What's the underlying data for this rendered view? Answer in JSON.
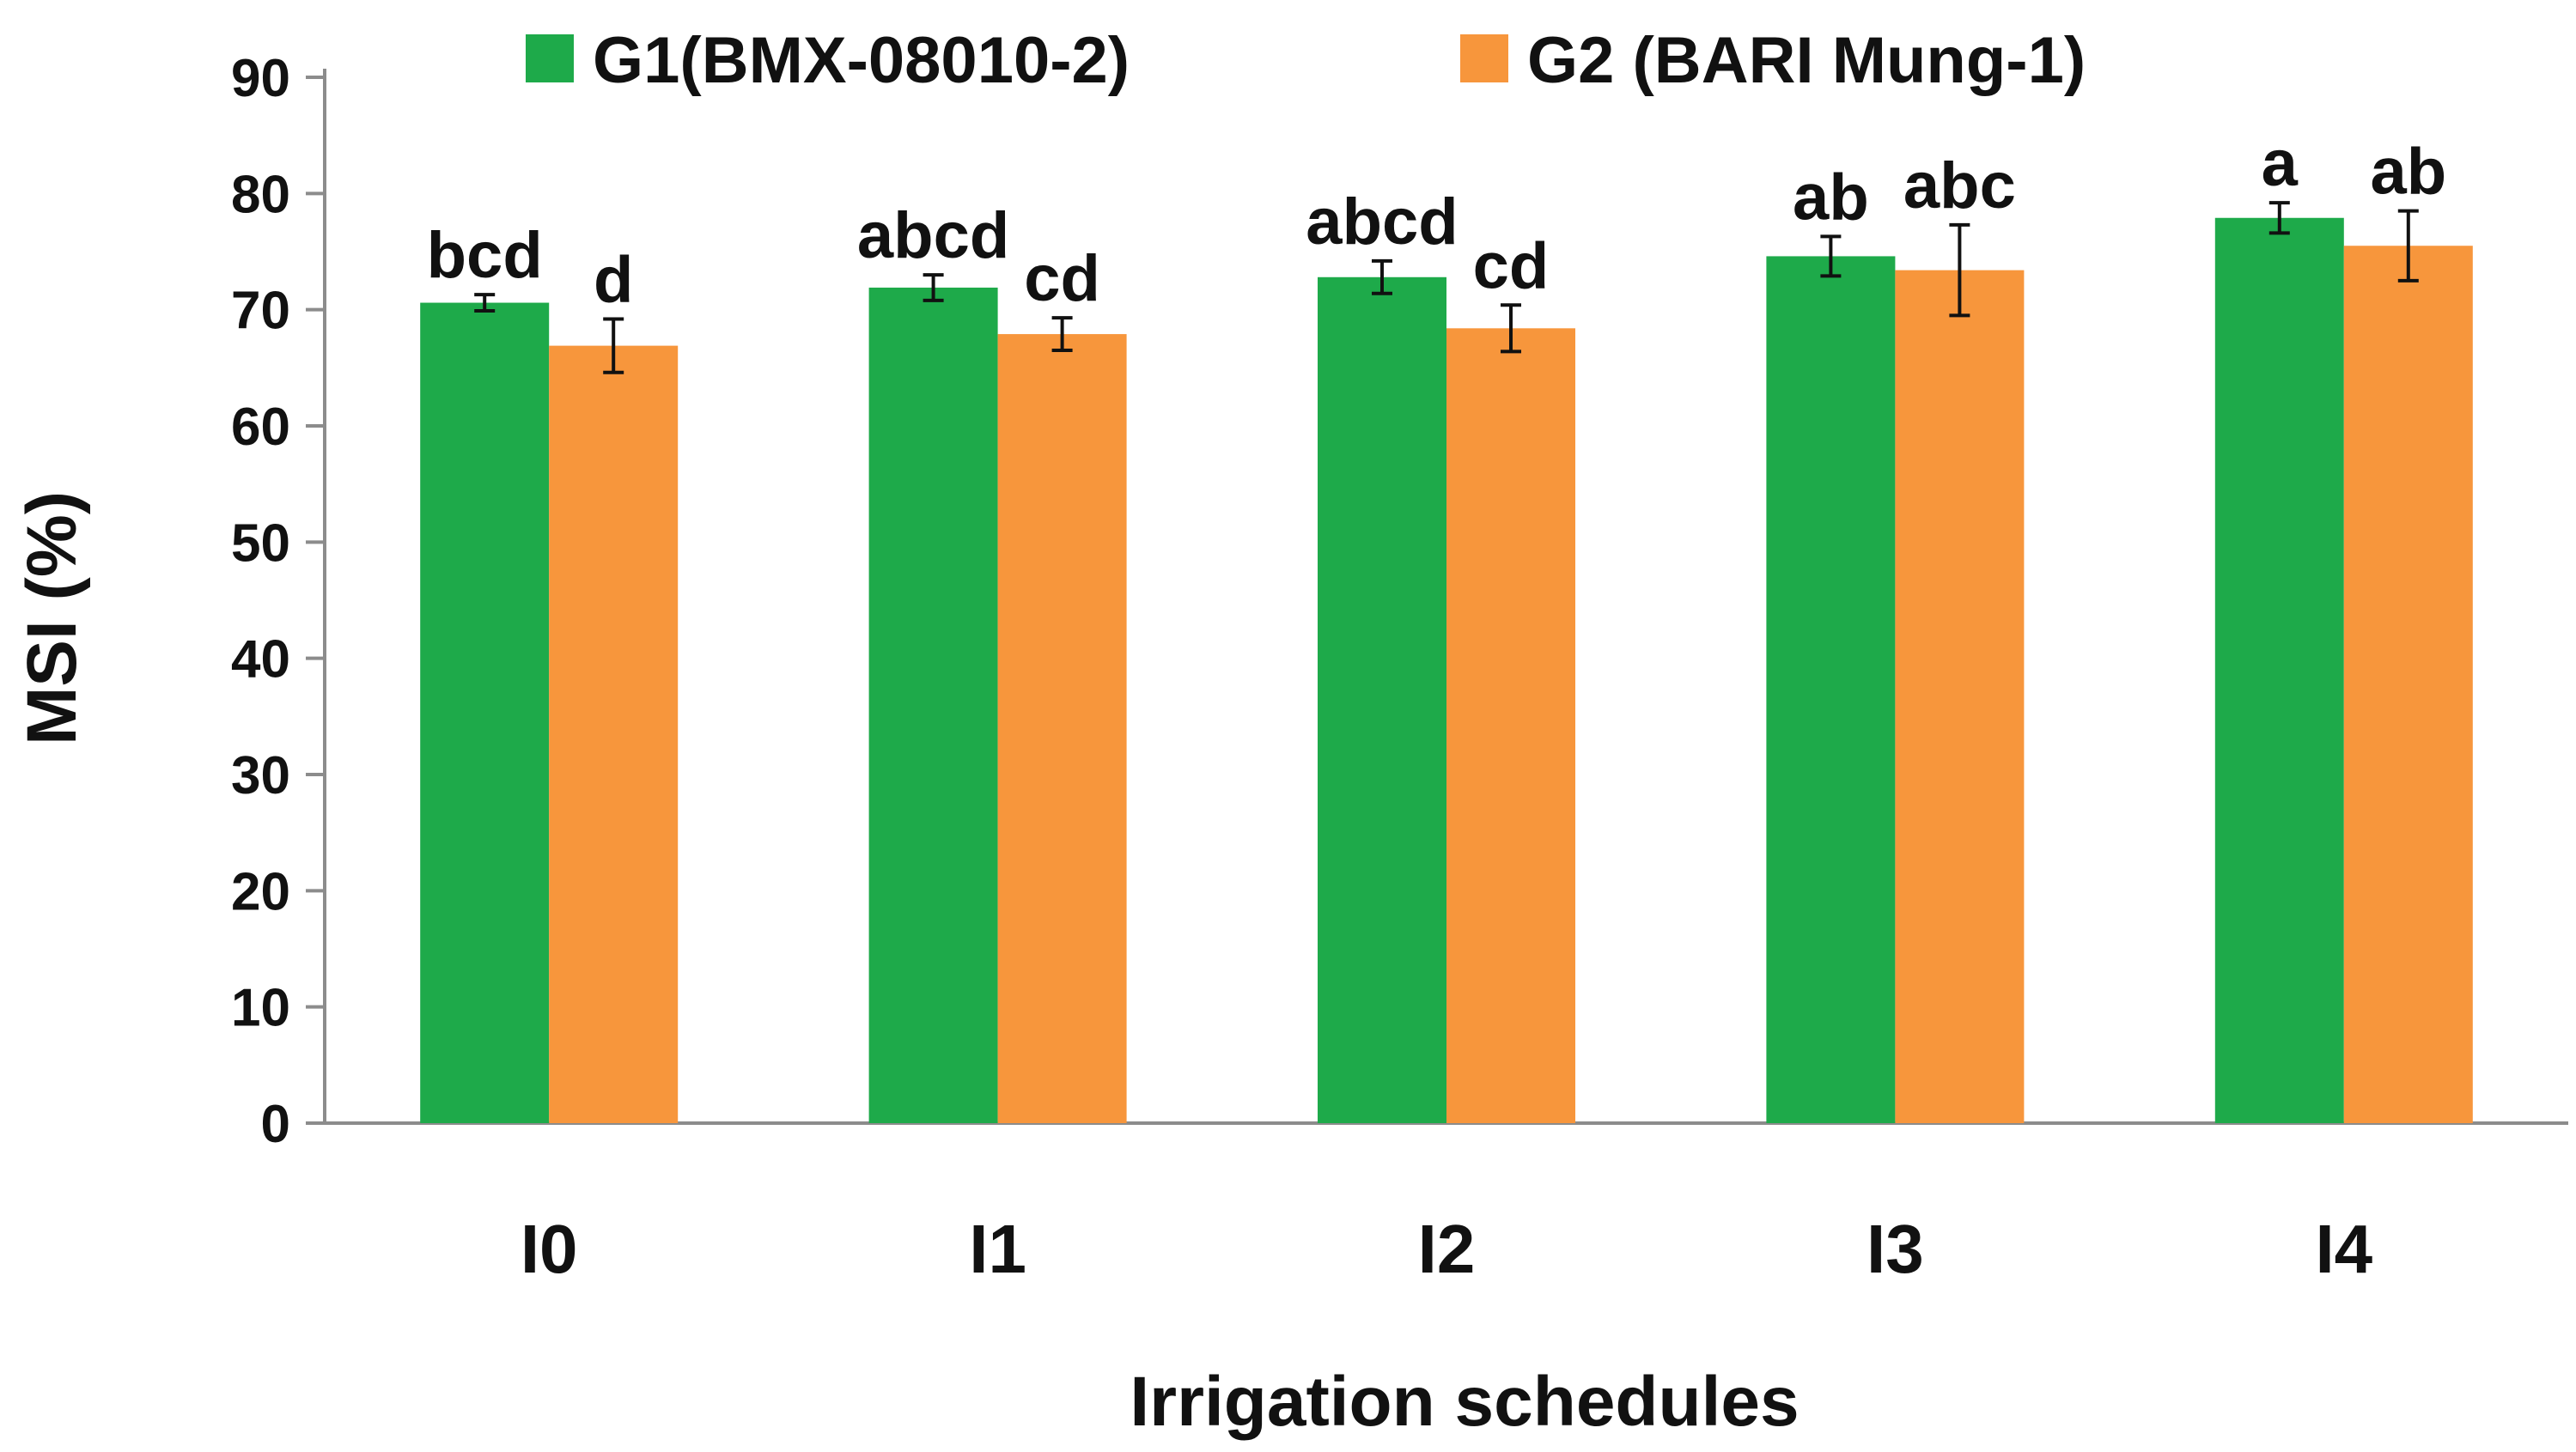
{
  "chart_data": {
    "type": "bar",
    "title": "",
    "xlabel": "Irrigation schedules",
    "ylabel": "MSI (%)",
    "ylim": [
      0,
      90
    ],
    "yticks": [
      0,
      10,
      20,
      30,
      40,
      50,
      60,
      70,
      80,
      90
    ],
    "grid": false,
    "legend_position": "top",
    "categories": [
      "I0",
      "I1",
      "I2",
      "I3",
      "I4"
    ],
    "series": [
      {
        "name": "G1(BMX-08010-2)",
        "color": "#1eaa4a",
        "values": [
          70.6,
          71.9,
          72.8,
          74.6,
          77.9
        ],
        "errors": [
          0.7,
          1.1,
          1.4,
          1.7,
          1.3
        ],
        "sig_labels": [
          "bcd",
          "abcd",
          "abcd",
          "ab",
          "a"
        ]
      },
      {
        "name": "G2 (BARI Mung-1)",
        "color": "#f7963c",
        "values": [
          66.9,
          67.9,
          68.4,
          73.4,
          75.5
        ],
        "errors": [
          2.3,
          1.4,
          2.0,
          3.9,
          3.0
        ],
        "sig_labels": [
          "d",
          "cd",
          "cd",
          "abc",
          "ab"
        ]
      }
    ]
  }
}
